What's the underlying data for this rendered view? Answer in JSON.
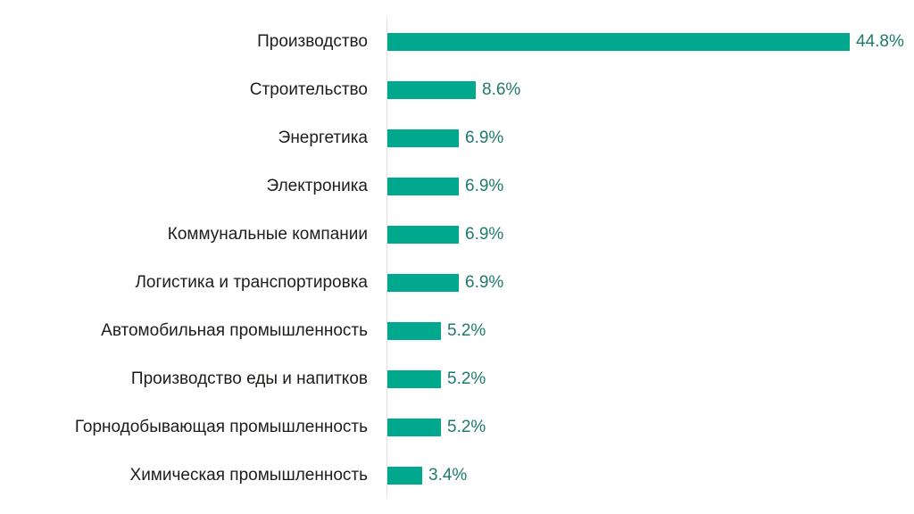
{
  "chart_data": {
    "type": "bar",
    "orientation": "horizontal",
    "title": "",
    "xlabel": "",
    "ylabel": "",
    "categories": [
      "Производство",
      "Строительство",
      "Энергетика",
      "Электроника",
      "Коммунальные компании",
      "Логистика и транспортировка",
      "Автомобильная промышленность",
      "Производство еды и напитков",
      "Горнодобывающая промышленность",
      "Химическая промышленность"
    ],
    "values": [
      44.8,
      8.6,
      6.9,
      6.9,
      6.9,
      6.9,
      5.2,
      5.2,
      5.2,
      3.4
    ],
    "value_labels": [
      "44.8%",
      "8.6%",
      "6.9%",
      "6.9%",
      "6.9%",
      "6.9%",
      "5.2%",
      "5.2%",
      "5.2%",
      "3.4%"
    ],
    "unit": "%",
    "xlim": [
      0,
      44.8
    ],
    "grid": false,
    "legend": null,
    "colors": {
      "bar": "#00a88e",
      "value_label": "#1f7a6b",
      "category_label": "#1d1d1b",
      "axis": "#e3e3e3"
    }
  }
}
